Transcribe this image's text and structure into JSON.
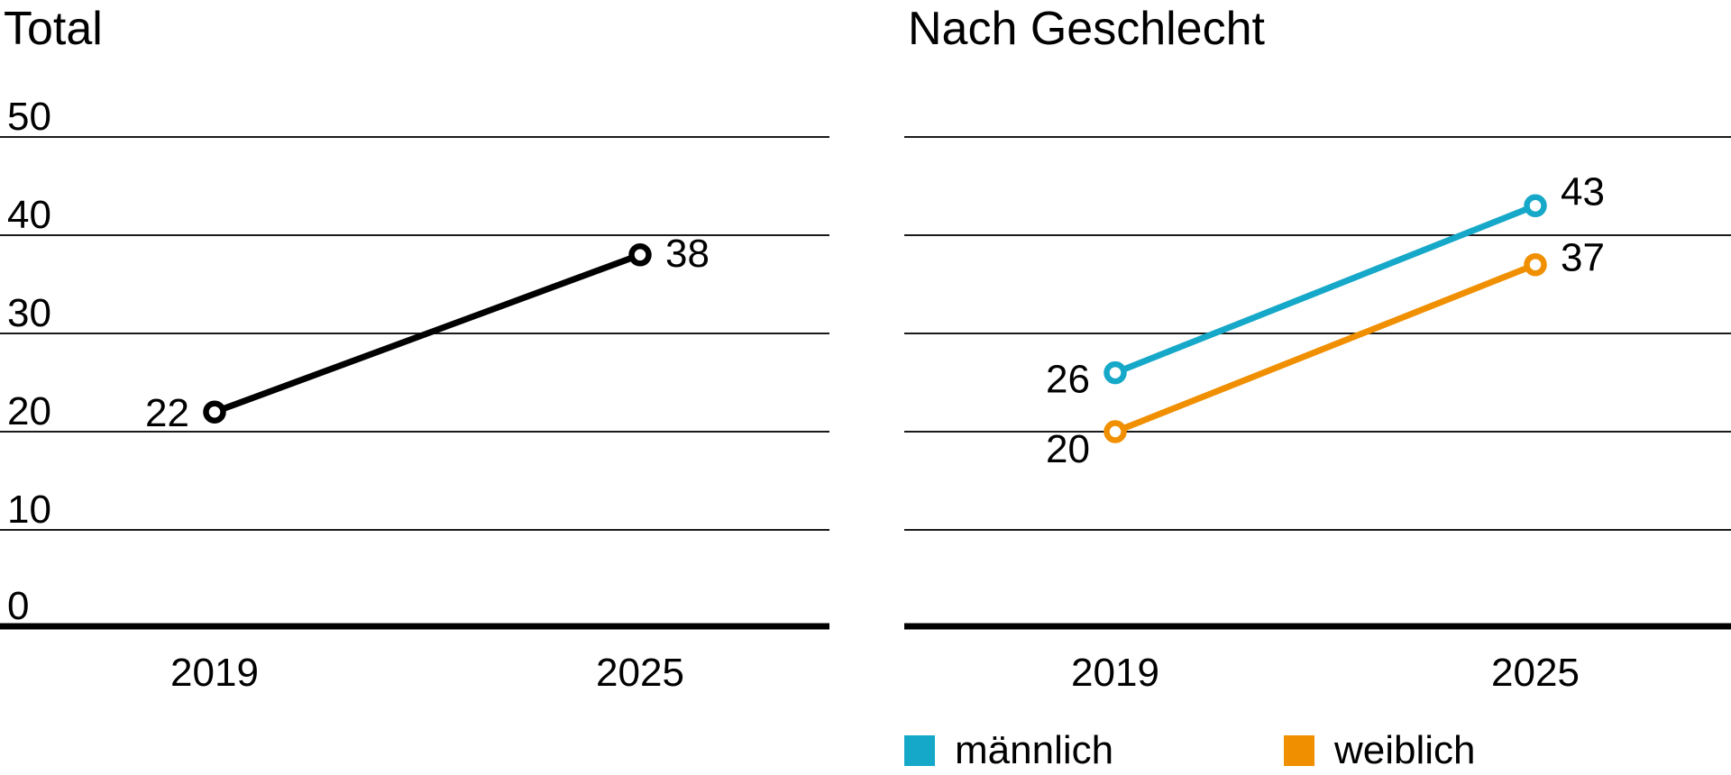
{
  "page": {
    "background": "#ffffff",
    "text_color": "#000000",
    "grid_color": "#1a1a1a",
    "axis_color": "#000000"
  },
  "chart_data": [
    {
      "type": "line",
      "title": "Total",
      "categories": [
        "2019",
        "2025"
      ],
      "series": [
        {
          "name": "Total",
          "color": "#000000",
          "values": [
            22,
            38
          ]
        }
      ],
      "ylim": [
        0,
        50
      ],
      "yticks": [
        0,
        10,
        20,
        30,
        40,
        50
      ],
      "ytick_labels_visible": true,
      "grid": "horizontal",
      "data_labels": true,
      "legend": null
    },
    {
      "type": "line",
      "title": "Nach Geschlecht",
      "categories": [
        "2019",
        "2025"
      ],
      "series": [
        {
          "name": "männlich",
          "color": "#16a8c8",
          "values": [
            26,
            43
          ]
        },
        {
          "name": "weiblich",
          "color": "#f08f00",
          "values": [
            20,
            37
          ]
        }
      ],
      "ylim": [
        0,
        50
      ],
      "yticks": [
        0,
        10,
        20,
        30,
        40,
        50
      ],
      "ytick_labels_visible": false,
      "grid": "horizontal",
      "data_labels": true,
      "legend": {
        "position": "bottom",
        "entries": [
          "männlich",
          "weiblich"
        ]
      }
    }
  ]
}
